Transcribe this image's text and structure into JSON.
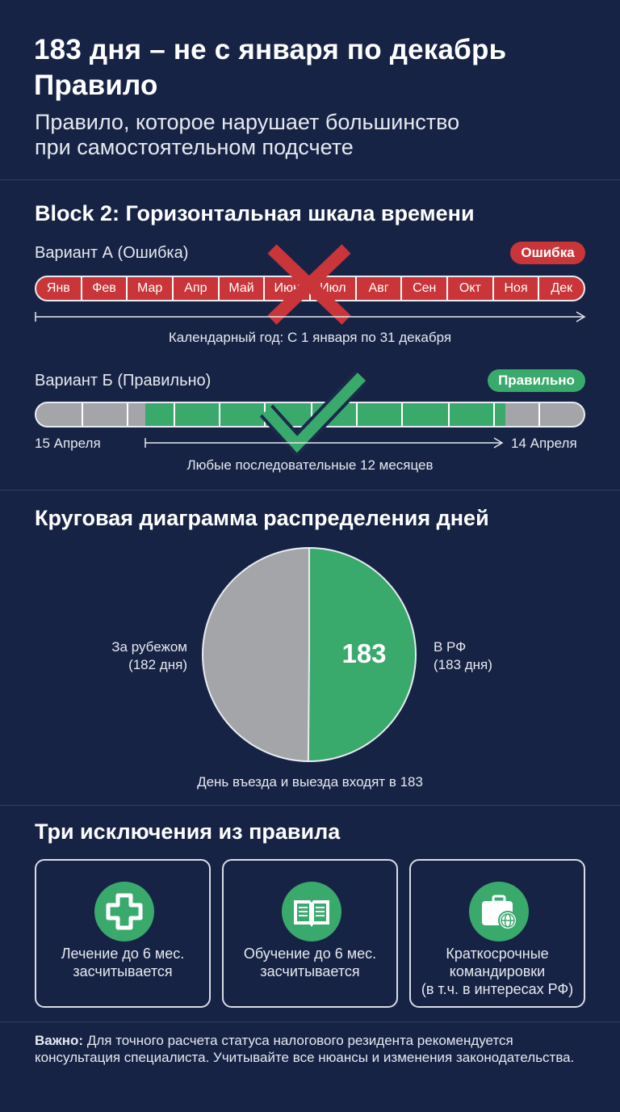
{
  "header": {
    "title_line1": "183 дня – не с января по декабрь",
    "title_line2": "Правило",
    "subtitle_line1": "Правило, которое нарушает большинство",
    "subtitle_line2": "при самостоятельном подсчете"
  },
  "timeline": {
    "heading": "Block 2: Горизонтальная шкала времени",
    "variant_a": {
      "label": "Вариант А (Ошибка)",
      "badge": "Ошибка",
      "months": [
        "Янв",
        "Фев",
        "Мар",
        "Апр",
        "Май",
        "Июн",
        "Июл",
        "Авг",
        "Сен",
        "Окт",
        "Ноя",
        "Дек"
      ],
      "caption": "Календарный год: С 1 января по 31 декабря",
      "badge_color": "#c93539"
    },
    "variant_b": {
      "label": "Вариант Б (Правильно)",
      "badge": "Правильно",
      "start": "15 Апреля",
      "end": "14 Апреля",
      "caption": "Любые последовательные 12 месяцев",
      "badge_color": "#3aa96c"
    }
  },
  "pie": {
    "heading": "Круговая диаграмма распределения дней",
    "center_value": "183",
    "left_label_1": "За рубежом",
    "left_label_2": "(182 дня)",
    "right_label_1": "В РФ",
    "right_label_2": "(183 дня)",
    "caption": "День въезда и выезда входят в 183"
  },
  "chart_data": {
    "type": "pie",
    "slices": [
      {
        "label": "В РФ",
        "value": 183,
        "color": "#3aa96c"
      },
      {
        "label": "За рубежом",
        "value": 182,
        "color": "#a4a5a9"
      }
    ]
  },
  "exceptions": {
    "heading": "Три исключения из правила",
    "items": [
      {
        "text": "Лечение до 6 мес.\nзасчитывается",
        "icon": "medical-cross-icon"
      },
      {
        "text": "Обучение до 6 мес.\nзасчитывается",
        "icon": "open-book-icon"
      },
      {
        "text": "Краткосрочные\nкомандировки\n(в т.ч. в интересах РФ)",
        "icon": "briefcase-globe-icon"
      }
    ]
  },
  "footer": {
    "bold": "Важно:",
    "text": " Для точного расчета статуса налогового резидента рекомендуется консультация специалиста. Учитывайте все нюансы и изменения законодательства."
  }
}
